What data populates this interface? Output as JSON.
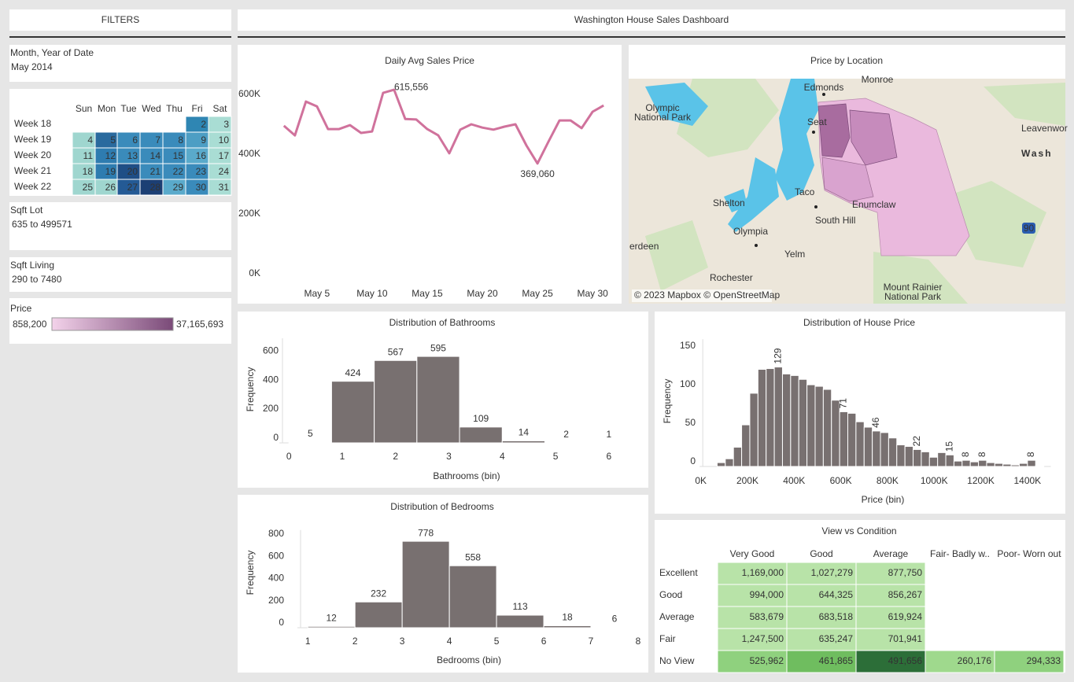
{
  "header": {
    "filters_title": "FILTERS",
    "title": "Washington House Sales Dashboard"
  },
  "filters": {
    "month": {
      "label": "Month, Year of Date",
      "value": "May 2014"
    },
    "calendar": {
      "days": [
        "Sun",
        "Mon",
        "Tue",
        "Wed",
        "Thu",
        "Fri",
        "Sat"
      ],
      "weeks": [
        "Week 18",
        "Week 19",
        "Week 20",
        "Week 21",
        "Week 22"
      ],
      "cells": [
        [
          null,
          null,
          null,
          null,
          null,
          2,
          3
        ],
        [
          4,
          5,
          6,
          7,
          8,
          9,
          10
        ],
        [
          11,
          12,
          13,
          14,
          15,
          16,
          17
        ],
        [
          18,
          19,
          20,
          21,
          22,
          23,
          24
        ],
        [
          25,
          26,
          27,
          28,
          29,
          30,
          31
        ]
      ],
      "colors": [
        [
          null,
          null,
          null,
          null,
          null,
          "#2f86b3",
          "#a9ddd4"
        ],
        [
          "#9fd6cf",
          "#2a6a9e",
          "#3a8bbb",
          "#3a8bbb",
          "#3a8bbb",
          "#4d9ec4",
          "#a9ddd4"
        ],
        [
          "#9fd6cf",
          "#2e7cb0",
          "#3a8bbb",
          "#3a8bbb",
          "#3a8bbb",
          "#5aaacb",
          "#a9ddd4"
        ],
        [
          "#9fd6cf",
          "#2e7cb0",
          "#1f4e86",
          "#3a8bbb",
          "#3a8bbb",
          "#3a8bbb",
          "#a9ddd4"
        ],
        [
          "#9fd6cf",
          "#9fd6cf",
          "#245a95",
          "#1c3f74",
          "#5aaacb",
          "#3a8bbb",
          "#a9ddd4"
        ]
      ]
    },
    "sqft_lot": {
      "label": "Sqft Lot",
      "value": "635 to 499571"
    },
    "sqft_living": {
      "label": "Sqft Living",
      "value": "290 to 7480"
    },
    "price": {
      "label": "Price",
      "min": "858,200",
      "max": "37,165,693",
      "colors": [
        "#f3d2ea",
        "#7a4a78"
      ]
    }
  },
  "chart_data": [
    {
      "type": "line",
      "title": "Daily Avg Sales Price",
      "color": "#d0729c",
      "x": [
        2,
        3,
        4,
        5,
        6,
        7,
        8,
        9,
        10,
        11,
        12,
        13,
        14,
        15,
        16,
        17,
        18,
        19,
        20,
        21,
        22,
        23,
        24,
        25,
        26,
        27,
        28,
        29,
        30,
        31
      ],
      "values": [
        495000,
        463000,
        576000,
        560000,
        484000,
        484000,
        497000,
        471000,
        476000,
        605000,
        615556,
        518000,
        516000,
        484000,
        463000,
        403000,
        482000,
        500000,
        489000,
        482000,
        492000,
        500000,
        429000,
        369060,
        442000,
        513000,
        513000,
        487000,
        542000,
        563000
      ],
      "value_labels": [
        null,
        null,
        null,
        null,
        null,
        null,
        null,
        null,
        null,
        null,
        "615,556",
        null,
        null,
        null,
        null,
        null,
        null,
        null,
        null,
        null,
        null,
        null,
        null,
        "369,060",
        null,
        null,
        null,
        null,
        null,
        null
      ],
      "xlim": [
        1.3,
        31.7
      ],
      "xticks": [
        {
          "value": 5,
          "label": "May 5"
        },
        {
          "value": 10,
          "label": "May 10"
        },
        {
          "value": 15,
          "label": "May 15"
        },
        {
          "value": 20,
          "label": "May 20"
        },
        {
          "value": 25,
          "label": "May 25"
        },
        {
          "value": 30,
          "label": "May 30"
        }
      ],
      "ylim": [
        -30000,
        650000
      ],
      "yticks": [
        {
          "value": 0,
          "label": "0K"
        },
        {
          "value": 200000,
          "label": "200K"
        },
        {
          "value": 400000,
          "label": "400K"
        },
        {
          "value": 600000,
          "label": "600K"
        }
      ],
      "grid": false
    },
    {
      "type": "histogram",
      "title": "Distribution of Bathrooms",
      "xlabel": "Bathrooms (bin)",
      "ylabel": "Frequency",
      "color": "#787070",
      "bins": [
        0,
        0.8,
        1.6,
        2.4,
        3.2,
        4.0,
        4.8,
        5.6,
        6.4
      ],
      "values": [
        5,
        424,
        567,
        595,
        109,
        14,
        2,
        1
      ],
      "show_values": true,
      "xlim": [
        -0.18,
        6.1
      ],
      "xticks": [
        0,
        1,
        2,
        3,
        4,
        5,
        6
      ],
      "ylim": [
        0,
        720
      ],
      "yticks": [
        0,
        200,
        400,
        600
      ],
      "grid": false
    },
    {
      "type": "histogram",
      "title": "Distribution of Bedrooms",
      "xlabel": "Bedrooms (bin)",
      "ylabel": "Frequency",
      "color": "#787070",
      "bins": [
        1,
        2,
        3,
        4,
        5,
        6,
        7,
        8
      ],
      "values": [
        12,
        232,
        778,
        558,
        113,
        18,
        6
      ],
      "show_values": true,
      "xlim": [
        0.78,
        8.0
      ],
      "xticks": [
        1,
        2,
        3,
        4,
        5,
        6,
        7,
        8
      ],
      "ylim": [
        0,
        880
      ],
      "yticks": [
        0,
        200,
        400,
        600,
        800
      ],
      "grid": false
    },
    {
      "type": "histogram",
      "title": "Distribution of House Price",
      "xlabel": "Price (bin)",
      "ylabel": "Frequency",
      "color": "#787070",
      "bins": [
        70000,
        105000,
        140000,
        175000,
        210000,
        245000,
        280000,
        315000,
        350000,
        385000,
        420000,
        455000,
        490000,
        525000,
        560000,
        595000,
        630000,
        665000,
        700000,
        735000,
        770000,
        805000,
        840000,
        875000,
        910000,
        945000,
        980000,
        1015000,
        1050000,
        1085000,
        1120000,
        1155000,
        1190000,
        1225000,
        1260000,
        1295000,
        1330000,
        1365000,
        1400000,
        1435000,
        1470000
      ],
      "values": [
        5,
        10,
        25,
        54,
        95,
        126,
        127,
        129,
        120,
        118,
        113,
        106,
        104,
        100,
        86,
        71,
        69,
        58,
        51,
        46,
        44,
        37,
        28,
        26,
        22,
        19,
        12,
        18,
        15,
        7,
        8,
        6,
        8,
        5,
        4,
        3,
        2,
        4,
        8,
        1
      ],
      "value_labels": [
        null,
        null,
        null,
        null,
        null,
        null,
        null,
        "129",
        null,
        null,
        null,
        null,
        null,
        null,
        null,
        "71",
        null,
        null,
        null,
        "46",
        null,
        null,
        null,
        null,
        "22",
        null,
        null,
        null,
        "15",
        null,
        "8",
        null,
        "8",
        null,
        null,
        null,
        null,
        null,
        "8",
        null
      ],
      "label_rotation": -90,
      "xlim": [
        -5000,
        1500000
      ],
      "xticks": [
        {
          "value": 0,
          "label": "0K"
        },
        {
          "value": 200000,
          "label": "200K"
        },
        {
          "value": 400000,
          "label": "400K"
        },
        {
          "value": 600000,
          "label": "600K"
        },
        {
          "value": 800000,
          "label": "800K"
        },
        {
          "value": 1000000,
          "label": "1000K"
        },
        {
          "value": 1200000,
          "label": "1200K"
        },
        {
          "value": 1400000,
          "label": "1400K"
        }
      ],
      "ylim": [
        0,
        165
      ],
      "yticks": [
        0,
        50,
        100,
        150
      ],
      "grid": false
    }
  ],
  "map": {
    "title": "Price by Location",
    "places": [
      [
        "Monroe"
      ],
      [
        "Edmonds"
      ],
      [
        "Olympic",
        "National Park"
      ],
      [
        "Seat"
      ],
      [
        "Leavenwor"
      ],
      [
        "Wash"
      ],
      [
        "Taco"
      ],
      [
        "Enumclaw"
      ],
      [
        "Shelton"
      ],
      [
        "South Hill"
      ],
      [
        "Olympia"
      ],
      [
        "erdeen"
      ],
      [
        "Yelm"
      ],
      [
        "Rochester"
      ],
      [
        "Mount Rainier",
        "National Park"
      ]
    ],
    "highway": "90",
    "attribution": "© 2023 Mapbox © OpenStreetMap"
  },
  "table": {
    "title": "View vs Condition",
    "columns": [
      "Very Good",
      "Good",
      "Average",
      "Fair- Badly w..",
      "Poor- Worn out"
    ],
    "rows": [
      {
        "label": "Excellent",
        "cells": [
          "1,169,000",
          "1,027,279",
          "877,750",
          null,
          null
        ],
        "colors": [
          "#b8e3a8",
          "#b8e3a8",
          "#b8e3a8",
          null,
          null
        ]
      },
      {
        "label": "Good",
        "cells": [
          "994,000",
          "644,325",
          "856,267",
          null,
          null
        ],
        "colors": [
          "#b8e3a8",
          "#b8e3a8",
          "#b8e3a8",
          null,
          null
        ]
      },
      {
        "label": "Average",
        "cells": [
          "583,679",
          "683,518",
          "619,924",
          null,
          null
        ],
        "colors": [
          "#b8e3a8",
          "#b8e3a8",
          "#b8e3a8",
          null,
          null
        ]
      },
      {
        "label": "Fair",
        "cells": [
          "1,247,500",
          "635,247",
          "701,941",
          null,
          null
        ],
        "colors": [
          "#b8e3a8",
          "#b8e3a8",
          "#b8e3a8",
          null,
          null
        ]
      },
      {
        "label": "No View",
        "cells": [
          "525,962",
          "461,865",
          "491,656",
          "260,176",
          "294,333"
        ],
        "colors": [
          "#8fd17e",
          "#6fbd5f",
          "#2c6e38",
          "#9fd98d",
          "#8fd17e"
        ]
      }
    ]
  }
}
